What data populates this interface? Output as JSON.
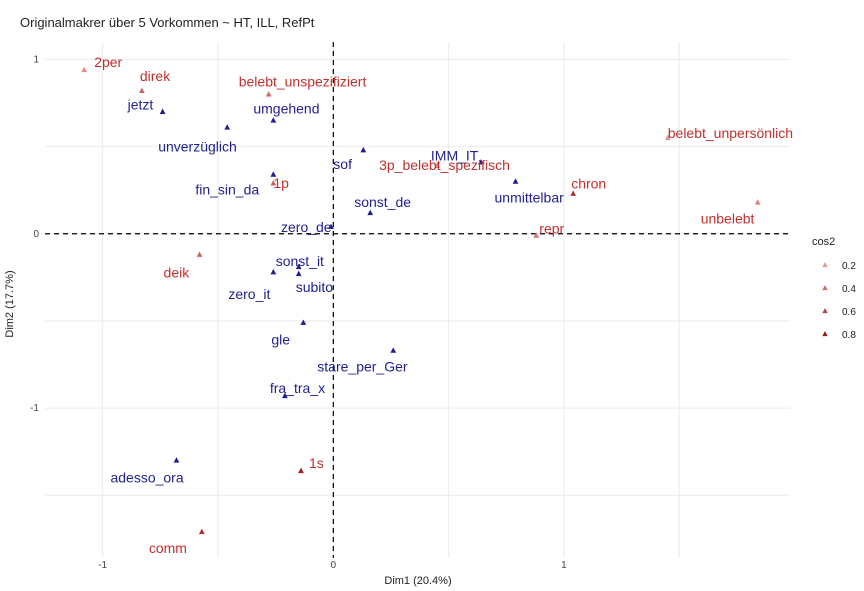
{
  "chart_data": {
    "type": "scatter",
    "title": "Originalmakrer über 5 Vorkommen ~ HT, ILL, RefPt",
    "xlabel": "Dim1 (20.4%)",
    "ylabel": "Dim2 (17.7%)",
    "xlim": [
      -1.25,
      1.98
    ],
    "ylim": [
      -1.86,
      1.1
    ],
    "x_ticks": [
      -1,
      0,
      1
    ],
    "y_ticks": [
      1,
      0,
      -1
    ],
    "grid": true,
    "reference_lines": {
      "x": 0,
      "y": 0
    },
    "legend": {
      "title": "cos2",
      "position": "right",
      "entries": [
        "0.2",
        "0.4",
        "0.6",
        "0.8"
      ]
    },
    "colors": {
      "red_group": "#c0302f",
      "blue_group": "#1f1f8f",
      "grid": "#ebebeb"
    },
    "series": [
      {
        "group": "red",
        "points": [
          {
            "label": "2per",
            "x": -1.08,
            "y": 0.94,
            "cos2": 0.25
          },
          {
            "label": "direk",
            "x": -0.83,
            "y": 0.82,
            "cos2": 0.45
          },
          {
            "label": "belebt_unspezifiziert",
            "x": -0.28,
            "y": 0.8,
            "cos2": 0.4
          },
          {
            "label": "1p",
            "x": -0.26,
            "y": 0.29,
            "cos2": 0.45
          },
          {
            "label": "3p_belebt_spezifisch",
            "x": 0.45,
            "y": 0.39,
            "cos2": 0.3
          },
          {
            "label": "belebt_unpersönlich",
            "x": 1.45,
            "y": 0.55,
            "cos2": 0.2
          },
          {
            "label": "chron",
            "x": 1.04,
            "y": 0.23,
            "cos2": 0.7
          },
          {
            "label": "unbelebt",
            "x": 1.84,
            "y": 0.18,
            "cos2": 0.3
          },
          {
            "label": "repr",
            "x": 0.88,
            "y": -0.01,
            "cos2": 0.35
          },
          {
            "label": "deik",
            "x": -0.58,
            "y": -0.12,
            "cos2": 0.45
          },
          {
            "label": "1s",
            "x": -0.14,
            "y": -1.36,
            "cos2": 0.8
          },
          {
            "label": "comm",
            "x": -0.57,
            "y": -1.71,
            "cos2": 0.7
          }
        ]
      },
      {
        "group": "blue",
        "points": [
          {
            "label": "jetzt",
            "x": -0.74,
            "y": 0.7,
            "cos2": 0.6
          },
          {
            "label": "umgehend",
            "x": -0.26,
            "y": 0.65,
            "cos2": 0.6
          },
          {
            "label": "unverzüglich",
            "x": -0.46,
            "y": 0.61,
            "cos2": 0.6
          },
          {
            "label": "IMM_IT",
            "x": 0.64,
            "y": 0.41,
            "cos2": 0.6
          },
          {
            "label": "sof",
            "x": 0.13,
            "y": 0.48,
            "cos2": 0.6
          },
          {
            "label": "fin_sin_da",
            "x": -0.26,
            "y": 0.34,
            "cos2": 0.6
          },
          {
            "label": "unmittelbar",
            "x": 0.79,
            "y": 0.3,
            "cos2": 0.6
          },
          {
            "label": "sonst_de",
            "x": 0.16,
            "y": 0.12,
            "cos2": 0.6
          },
          {
            "label": "zero_de",
            "x": -0.01,
            "y": 0.04,
            "cos2": 0.6
          },
          {
            "label": "sonst_it",
            "x": -0.15,
            "y": -0.19,
            "cos2": 0.6
          },
          {
            "label": "zero_it",
            "x": -0.26,
            "y": -0.22,
            "cos2": 0.6
          },
          {
            "label": "subito",
            "x": -0.15,
            "y": -0.23,
            "cos2": 0.6
          },
          {
            "label": "gle",
            "x": -0.13,
            "y": -0.51,
            "cos2": 0.6
          },
          {
            "label": "stare_per_Ger",
            "x": 0.26,
            "y": -0.67,
            "cos2": 0.6
          },
          {
            "label": "fra_tra_x",
            "x": -0.21,
            "y": -0.93,
            "cos2": 0.6
          },
          {
            "label": "adesso_ora",
            "x": -0.68,
            "y": -1.3,
            "cos2": 0.6
          }
        ]
      }
    ]
  }
}
